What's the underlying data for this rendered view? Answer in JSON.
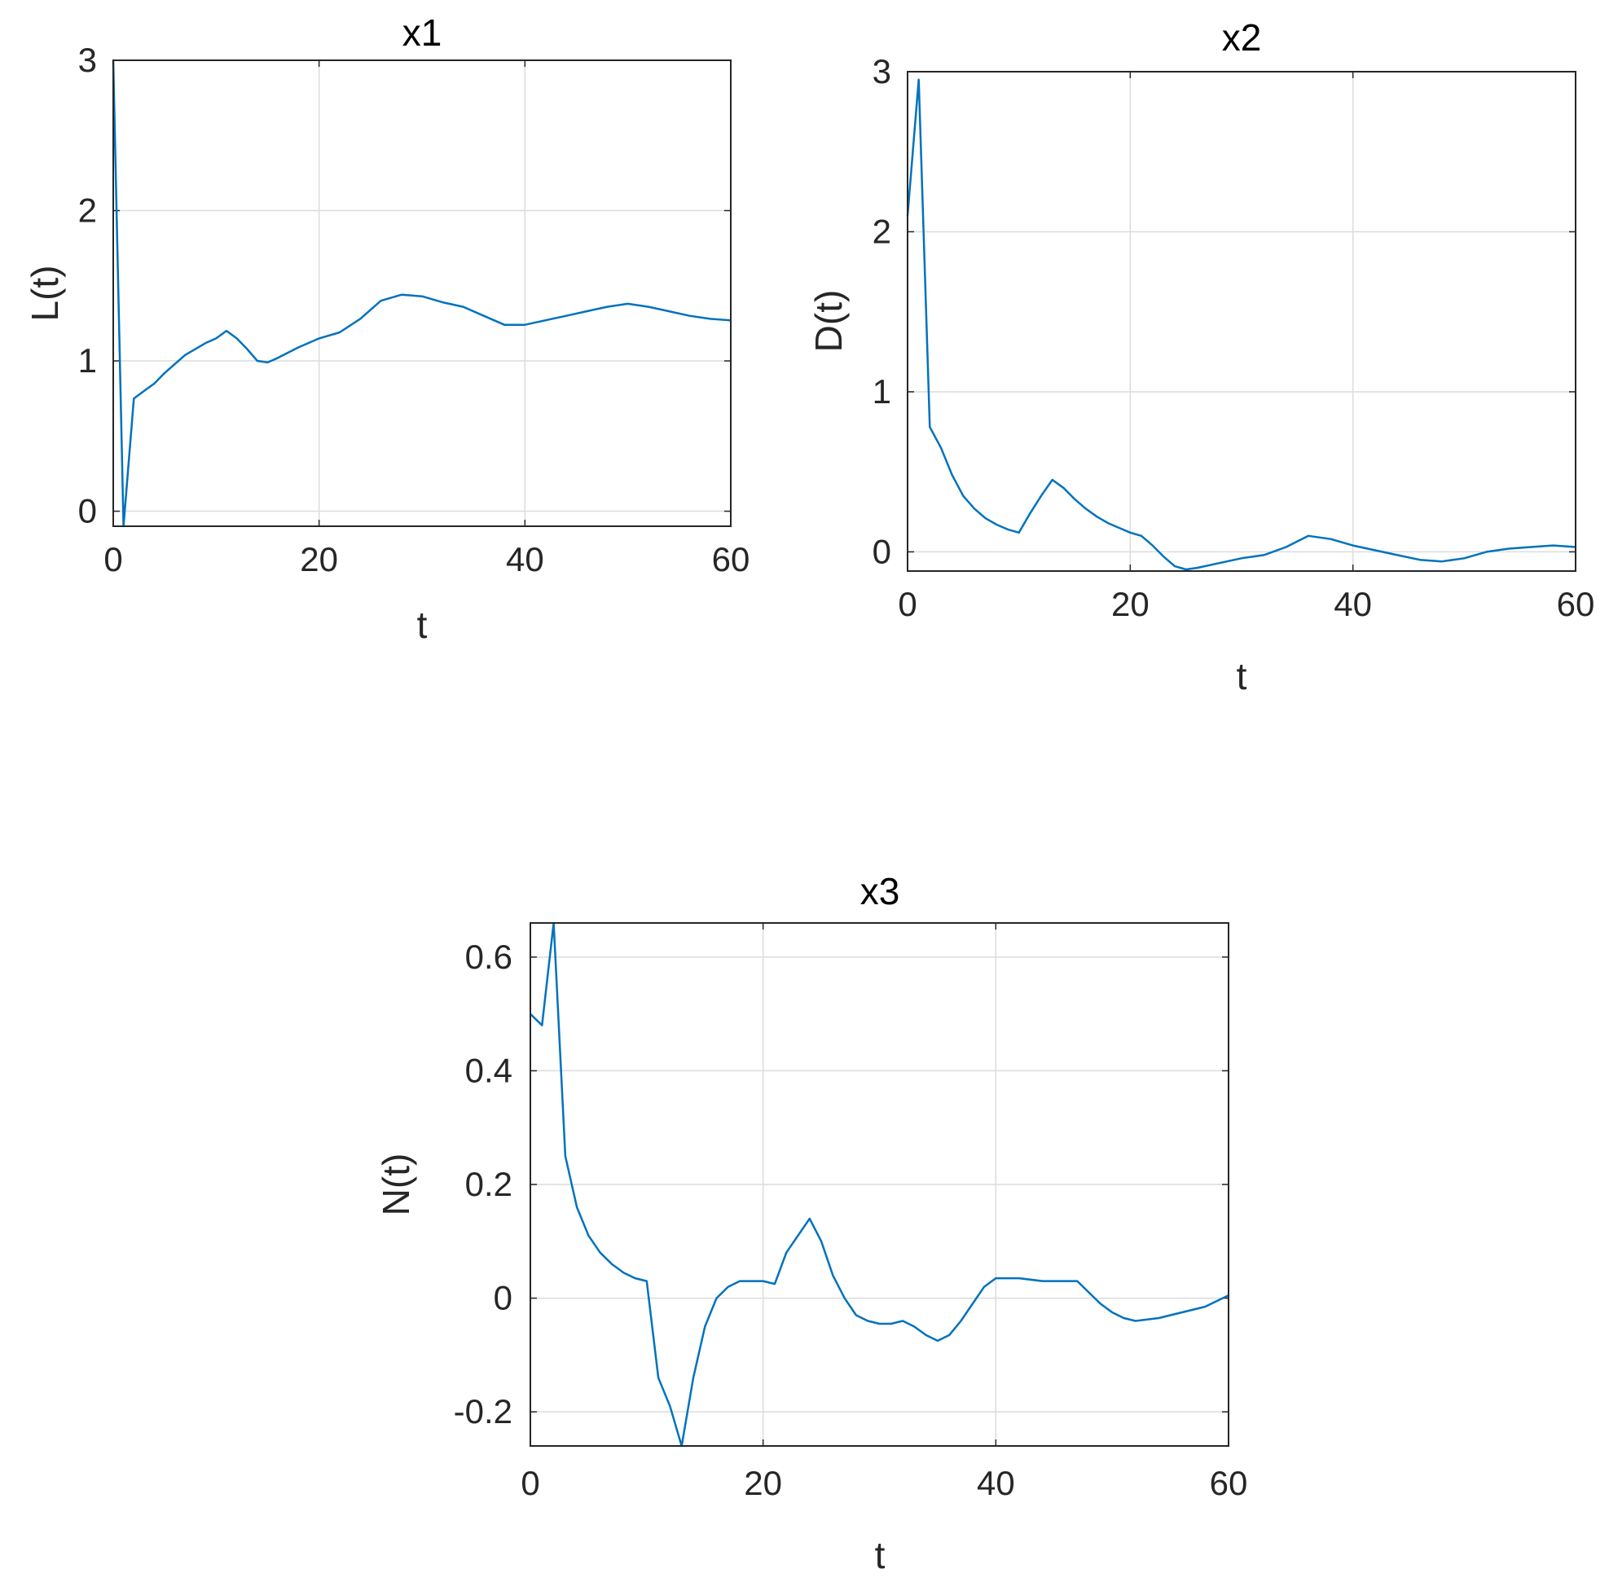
{
  "chart_data": [
    {
      "type": "line",
      "title": "x1",
      "xlabel": "t",
      "ylabel": "L(t)",
      "xlim": [
        0,
        60
      ],
      "ylim": [
        -0.1,
        3
      ],
      "xticks": [
        0,
        20,
        40,
        60
      ],
      "yticks": [
        0,
        1,
        2,
        3
      ],
      "grid": true,
      "series": [
        {
          "color": "#0072bd",
          "x": [
            0,
            1,
            2,
            3,
            4,
            5,
            6,
            7,
            8,
            9,
            10,
            11,
            12,
            13,
            14,
            15,
            16,
            18,
            20,
            22,
            24,
            26,
            28,
            30,
            32,
            34,
            36,
            38,
            40,
            42,
            44,
            46,
            48,
            50,
            52,
            54,
            56,
            58,
            60
          ],
          "y": [
            3.0,
            -0.1,
            0.75,
            0.8,
            0.85,
            0.92,
            0.98,
            1.04,
            1.08,
            1.12,
            1.15,
            1.2,
            1.15,
            1.08,
            1.0,
            0.99,
            1.02,
            1.09,
            1.15,
            1.19,
            1.28,
            1.4,
            1.44,
            1.43,
            1.39,
            1.36,
            1.3,
            1.24,
            1.24,
            1.27,
            1.3,
            1.33,
            1.36,
            1.38,
            1.36,
            1.33,
            1.3,
            1.28,
            1.27
          ]
        }
      ]
    },
    {
      "type": "line",
      "title": "x2",
      "xlabel": "t",
      "ylabel": "D(t)",
      "xlim": [
        0,
        60
      ],
      "ylim": [
        -0.12,
        3
      ],
      "xticks": [
        0,
        20,
        40,
        60
      ],
      "yticks": [
        0,
        1,
        2,
        3
      ],
      "grid": true,
      "series": [
        {
          "color": "#0072bd",
          "x": [
            0,
            1,
            2,
            3,
            4,
            5,
            6,
            7,
            8,
            9,
            10,
            11,
            12,
            13,
            14,
            15,
            16,
            17,
            18,
            19,
            20,
            21,
            22,
            23,
            24,
            25,
            26,
            28,
            30,
            32,
            34,
            36,
            38,
            40,
            42,
            44,
            46,
            48,
            50,
            52,
            54,
            56,
            58,
            60
          ],
          "y": [
            2.1,
            2.95,
            0.78,
            0.65,
            0.48,
            0.35,
            0.27,
            0.21,
            0.17,
            0.14,
            0.12,
            0.24,
            0.35,
            0.45,
            0.4,
            0.33,
            0.27,
            0.22,
            0.18,
            0.15,
            0.12,
            0.1,
            0.04,
            -0.03,
            -0.09,
            -0.11,
            -0.1,
            -0.07,
            -0.04,
            -0.02,
            0.03,
            0.1,
            0.08,
            0.04,
            0.01,
            -0.02,
            -0.05,
            -0.06,
            -0.04,
            0.0,
            0.02,
            0.03,
            0.04,
            0.03
          ]
        }
      ]
    },
    {
      "type": "line",
      "title": "x3",
      "xlabel": "t",
      "ylabel": "N(t)",
      "xlim": [
        0,
        60
      ],
      "ylim": [
        -0.26,
        0.66
      ],
      "xticks": [
        0,
        20,
        40,
        60
      ],
      "yticks": [
        -0.2,
        0,
        0.2,
        0.4,
        0.6
      ],
      "grid": true,
      "series": [
        {
          "color": "#0072bd",
          "x": [
            0,
            1,
            2,
            3,
            4,
            5,
            6,
            7,
            8,
            9,
            10,
            11,
            12,
            13,
            14,
            15,
            16,
            17,
            18,
            20,
            21,
            22,
            24,
            25,
            26,
            27,
            28,
            29,
            30,
            31,
            32,
            33,
            34,
            35,
            36,
            37,
            38,
            39,
            40,
            42,
            44,
            46,
            47,
            48,
            49,
            50,
            51,
            52,
            54,
            56,
            58,
            60
          ],
          "y": [
            0.5,
            0.48,
            0.66,
            0.25,
            0.16,
            0.11,
            0.08,
            0.06,
            0.045,
            0.035,
            0.03,
            -0.14,
            -0.19,
            -0.26,
            -0.14,
            -0.05,
            0.0,
            0.02,
            0.03,
            0.03,
            0.025,
            0.08,
            0.14,
            0.1,
            0.04,
            0.0,
            -0.03,
            -0.04,
            -0.045,
            -0.045,
            -0.04,
            -0.05,
            -0.065,
            -0.075,
            -0.065,
            -0.04,
            -0.01,
            0.02,
            0.035,
            0.035,
            0.03,
            0.03,
            0.03,
            0.01,
            -0.01,
            -0.025,
            -0.035,
            -0.04,
            -0.035,
            -0.025,
            -0.015,
            0.005
          ]
        }
      ]
    }
  ]
}
